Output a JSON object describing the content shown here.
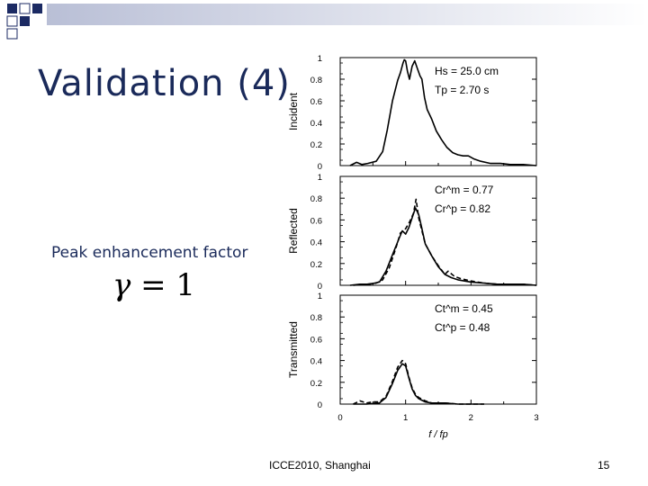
{
  "slide": {
    "title": "Validation (4)",
    "caption": "Peak enhancement factor",
    "formula": {
      "symbol": "γ",
      "relation": "= 1"
    },
    "footer": "ICCE2010, Shanghai",
    "page_number": "15"
  },
  "colors": {
    "title": "#1a2a5a",
    "deco_dark": "#1b2a63",
    "deco_light": "#b9bfd6",
    "line": "#000000"
  },
  "chart_data": [
    {
      "type": "line",
      "panel": "incident",
      "ylabel": "Incident",
      "xlim": [
        0,
        3
      ],
      "ylim": [
        0,
        1
      ],
      "yticks": [
        "0",
        "0.2",
        "0.4",
        "0.6",
        "0.8",
        "1"
      ],
      "annotations": [
        "Hs = 25.0 cm",
        "Tp = 2.70 s"
      ],
      "series": [
        {
          "style": "solid",
          "x": [
            0.15,
            0.25,
            0.33,
            0.42,
            0.55,
            0.65,
            0.72,
            0.8,
            0.88,
            0.92,
            0.96,
            0.98,
            1.0,
            1.03,
            1.06,
            1.1,
            1.14,
            1.18,
            1.22,
            1.25,
            1.29,
            1.33,
            1.4,
            1.47,
            1.55,
            1.63,
            1.72,
            1.8,
            1.88,
            1.96,
            2.05,
            2.15,
            2.3,
            2.45,
            2.6,
            2.8,
            3.0
          ],
          "y": [
            0.0,
            0.03,
            0.01,
            0.02,
            0.04,
            0.13,
            0.33,
            0.6,
            0.79,
            0.86,
            0.95,
            0.98,
            0.97,
            0.87,
            0.8,
            0.92,
            0.97,
            0.9,
            0.83,
            0.8,
            0.63,
            0.52,
            0.43,
            0.32,
            0.24,
            0.17,
            0.12,
            0.1,
            0.09,
            0.09,
            0.06,
            0.04,
            0.02,
            0.02,
            0.01,
            0.01,
            0.0
          ]
        }
      ]
    },
    {
      "type": "line",
      "panel": "reflected",
      "ylabel": "Reflected",
      "xlim": [
        0,
        3
      ],
      "ylim": [
        0,
        1
      ],
      "yticks": [
        "0",
        "0.2",
        "0.4",
        "0.6",
        "0.8",
        "1"
      ],
      "annotations": [
        "Cr^m = 0.77",
        "Cr^p = 0.82"
      ],
      "series": [
        {
          "style": "solid",
          "x": [
            0.15,
            0.3,
            0.45,
            0.6,
            0.7,
            0.8,
            0.9,
            0.95,
            1.0,
            1.05,
            1.1,
            1.15,
            1.2,
            1.25,
            1.3,
            1.4,
            1.5,
            1.6,
            1.7,
            1.8,
            2.0,
            2.2,
            2.4,
            2.6,
            2.8,
            3.0
          ],
          "y": [
            0.0,
            0.01,
            0.01,
            0.03,
            0.13,
            0.28,
            0.43,
            0.5,
            0.47,
            0.53,
            0.62,
            0.71,
            0.65,
            0.52,
            0.38,
            0.27,
            0.17,
            0.1,
            0.07,
            0.05,
            0.03,
            0.02,
            0.01,
            0.01,
            0.01,
            0.0
          ]
        },
        {
          "style": "dashed",
          "x": [
            0.2,
            0.4,
            0.55,
            0.65,
            0.75,
            0.85,
            0.92,
            1.0,
            1.06,
            1.12,
            1.16,
            1.2,
            1.25,
            1.3,
            1.4,
            1.5,
            1.6,
            1.65,
            1.75,
            1.85,
            2.0,
            2.2,
            2.4,
            2.6,
            2.8,
            3.0
          ],
          "y": [
            0.0,
            0.01,
            0.02,
            0.05,
            0.16,
            0.34,
            0.48,
            0.52,
            0.58,
            0.66,
            0.79,
            0.62,
            0.5,
            0.38,
            0.27,
            0.18,
            0.1,
            0.13,
            0.08,
            0.06,
            0.04,
            0.02,
            0.01,
            0.01,
            0.01,
            0.0
          ]
        }
      ]
    },
    {
      "type": "line",
      "panel": "transmitted",
      "ylabel": "Transmitted",
      "xlim": [
        0,
        3
      ],
      "ylim": [
        0,
        1
      ],
      "yticks": [
        "0",
        "0.2",
        "0.4",
        "0.6",
        "0.8",
        "1"
      ],
      "xticks": [
        "0",
        "1",
        "2",
        "3"
      ],
      "xlabel": "f / fp",
      "annotations": [
        "Ct^m = 0.45",
        "Ct^p = 0.48"
      ],
      "series": [
        {
          "style": "solid",
          "x": [
            0.2,
            0.4,
            0.6,
            0.7,
            0.8,
            0.88,
            0.95,
            1.0,
            1.05,
            1.1,
            1.15,
            1.2,
            1.3,
            1.4,
            1.6,
            1.8,
            2.0,
            2.2
          ],
          "y": [
            0.0,
            0.0,
            0.01,
            0.06,
            0.19,
            0.31,
            0.37,
            0.35,
            0.24,
            0.14,
            0.08,
            0.05,
            0.02,
            0.01,
            0.01,
            0.0,
            0.0,
            0.0
          ]
        },
        {
          "style": "dashed",
          "x": [
            0.2,
            0.3,
            0.4,
            0.5,
            0.6,
            0.7,
            0.8,
            0.88,
            0.95,
            1.0,
            1.05,
            1.1,
            1.15,
            1.2,
            1.3,
            1.4,
            1.6,
            1.8,
            2.0,
            2.2
          ],
          "y": [
            0.0,
            0.03,
            0.01,
            0.02,
            0.02,
            0.07,
            0.21,
            0.34,
            0.4,
            0.37,
            0.25,
            0.15,
            0.09,
            0.06,
            0.03,
            0.01,
            0.01,
            0.0,
            0.0,
            0.0
          ]
        }
      ]
    }
  ]
}
